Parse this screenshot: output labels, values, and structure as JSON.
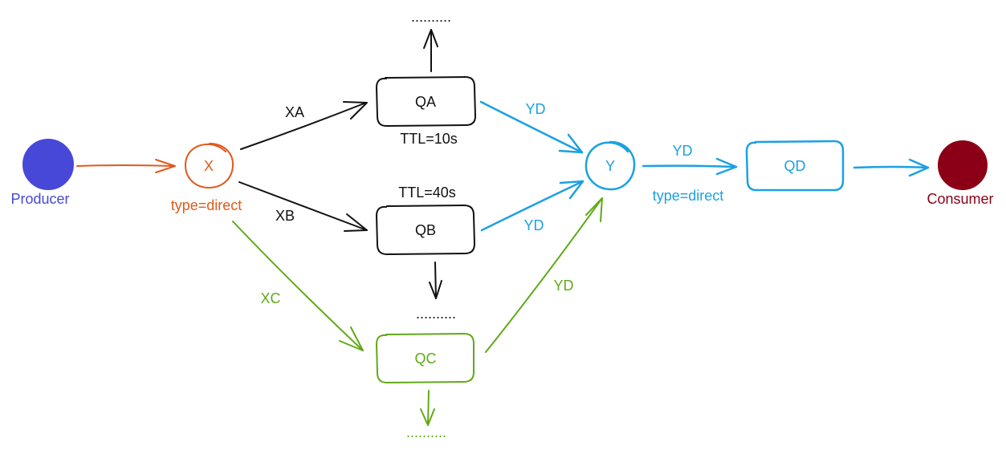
{
  "colors": {
    "producer": "#4848d8",
    "exchange_x": "#e05a1c",
    "cyan": "#1ba1e2",
    "green": "#60a917",
    "black": "#111111",
    "consumer": "#8b0016"
  },
  "nodes": {
    "producer": {
      "label": "Producer"
    },
    "exchange_x": {
      "label": "X",
      "type_label": "type=direct"
    },
    "queue_qa": {
      "label": "QA",
      "ttl": "TTL=10s"
    },
    "queue_qb": {
      "label": "QB",
      "ttl": "TTL=40s"
    },
    "queue_qc": {
      "label": "QC"
    },
    "exchange_y": {
      "label": "Y",
      "type_label": "type=direct"
    },
    "queue_qd": {
      "label": "QD"
    },
    "consumer": {
      "label": "Consumer"
    }
  },
  "edges": {
    "xa": {
      "label": "XA"
    },
    "xb": {
      "label": "XB"
    },
    "xc": {
      "label": "XC"
    },
    "qa_y": {
      "label": "YD"
    },
    "qb_y": {
      "label": "YD"
    },
    "qc_y": {
      "label": "YD"
    },
    "y_qd": {
      "label": "YD"
    }
  },
  "ellipsis": {
    "top": "..........",
    "middle": "..........",
    "bottom": ".........."
  }
}
